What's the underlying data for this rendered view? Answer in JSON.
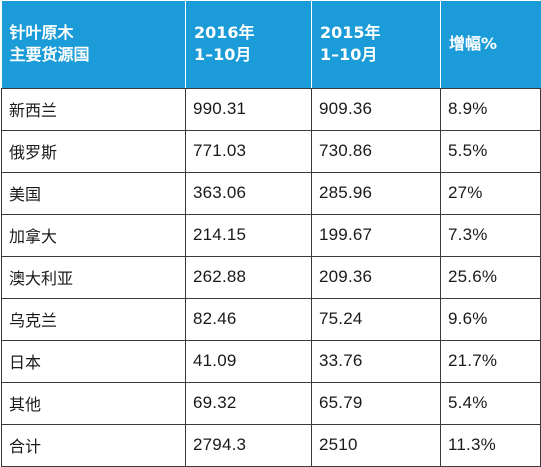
{
  "chart_data": {
    "type": "table",
    "header": {
      "col0": [
        "针叶原木",
        "主要货源国"
      ],
      "col1": [
        "2016年",
        "1–10月"
      ],
      "col2": [
        "2015年",
        "1–10月"
      ],
      "col3": [
        "增幅%"
      ]
    },
    "rows": [
      [
        "新西兰",
        "990.31",
        "909.36",
        "8.9%"
      ],
      [
        "俄罗斯",
        "771.03",
        "730.86",
        "5.5%"
      ],
      [
        "美国",
        "363.06",
        "285.96",
        "27%"
      ],
      [
        "加拿大",
        "214.15",
        "199.67",
        "7.3%"
      ],
      [
        "澳大利亚",
        "262.88",
        "209.36",
        "25.6%"
      ],
      [
        "乌克兰",
        "82.46",
        "75.24",
        "9.6%"
      ],
      [
        "日本",
        "41.09",
        "33.76",
        "21.7%"
      ],
      [
        "其他",
        "69.32",
        "65.79",
        "5.4%"
      ],
      [
        "合计",
        "2794.3",
        "2510",
        "11.3%"
      ]
    ],
    "colors": {
      "header_background": "#1b9bd7",
      "header_text": "#ffffff",
      "border": "#3a3a3a"
    }
  }
}
